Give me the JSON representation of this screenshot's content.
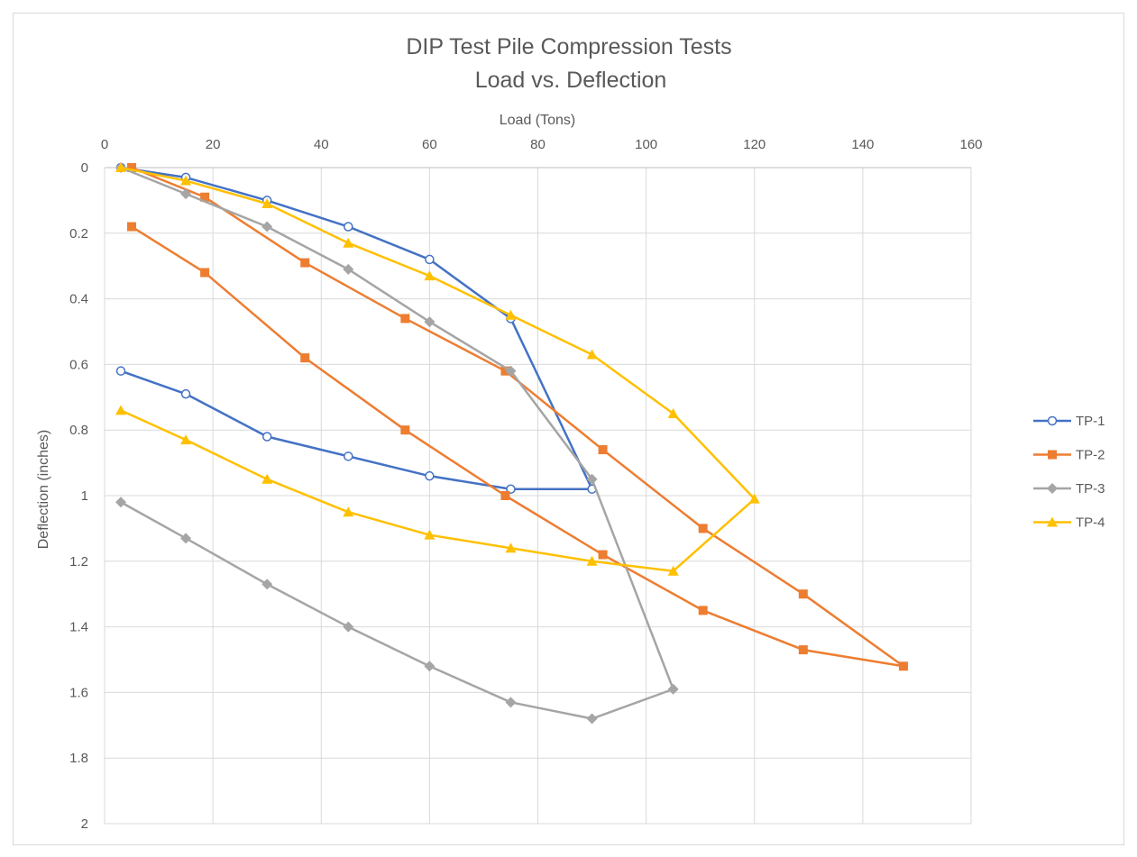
{
  "chart_data": {
    "type": "scatter",
    "title": [
      "DIP Test Pile Compression Tests",
      "Load vs. Deflection"
    ],
    "xlabel": "Load (Tons)",
    "ylabel": "Deflection (inches)",
    "xlim": [
      0,
      160
    ],
    "ylim": [
      0,
      2
    ],
    "y_inverted": true,
    "x_axis_position": "top",
    "grid": true,
    "legend_position": "right",
    "x_ticks": [
      "0",
      "20",
      "40",
      "60",
      "80",
      "100",
      "120",
      "140",
      "160"
    ],
    "y_ticks": [
      "0",
      "0.2",
      "0.4",
      "0.6",
      "0.8",
      "1",
      "1.2",
      "1.4",
      "1.6",
      "1.8",
      "2"
    ],
    "series": [
      {
        "name": "TP-1",
        "color": "#4472c4",
        "marker": "circle-open",
        "x": [
          3,
          15,
          30,
          45,
          60,
          75,
          90,
          75,
          60,
          45,
          30,
          15,
          3
        ],
        "y": [
          0,
          0.03,
          0.1,
          0.18,
          0.28,
          0.46,
          0.98,
          0.98,
          0.94,
          0.88,
          0.82,
          0.69,
          0.62
        ]
      },
      {
        "name": "TP-2",
        "color": "#ed7d31",
        "marker": "square",
        "x": [
          5,
          18.5,
          37,
          55.5,
          74,
          92,
          110.5,
          129,
          147.5,
          129,
          110.5,
          92,
          74,
          55.5,
          37,
          18.5,
          5
        ],
        "y": [
          0,
          0.09,
          0.29,
          0.46,
          0.62,
          0.86,
          1.1,
          1.3,
          1.52,
          1.47,
          1.35,
          1.18,
          1.0,
          0.8,
          0.58,
          0.32,
          0.18
        ]
      },
      {
        "name": "TP-3",
        "color": "#a5a5a5",
        "marker": "diamond",
        "x": [
          3,
          15,
          30,
          45,
          60,
          75,
          90,
          105,
          90,
          75,
          60,
          45,
          30,
          15,
          3
        ],
        "y": [
          0,
          0.08,
          0.18,
          0.31,
          0.47,
          0.62,
          0.95,
          1.59,
          1.68,
          1.63,
          1.52,
          1.4,
          1.27,
          1.13,
          1.02
        ]
      },
      {
        "name": "TP-4",
        "color": "#ffc000",
        "marker": "triangle",
        "x": [
          3,
          15,
          30,
          45,
          60,
          75,
          90,
          105,
          120,
          105,
          90,
          75,
          60,
          45,
          30,
          15,
          3
        ],
        "y": [
          0,
          0.04,
          0.11,
          0.23,
          0.33,
          0.45,
          0.57,
          0.75,
          1.01,
          1.23,
          1.2,
          1.16,
          1.12,
          1.05,
          0.95,
          0.83,
          0.74
        ]
      }
    ]
  }
}
